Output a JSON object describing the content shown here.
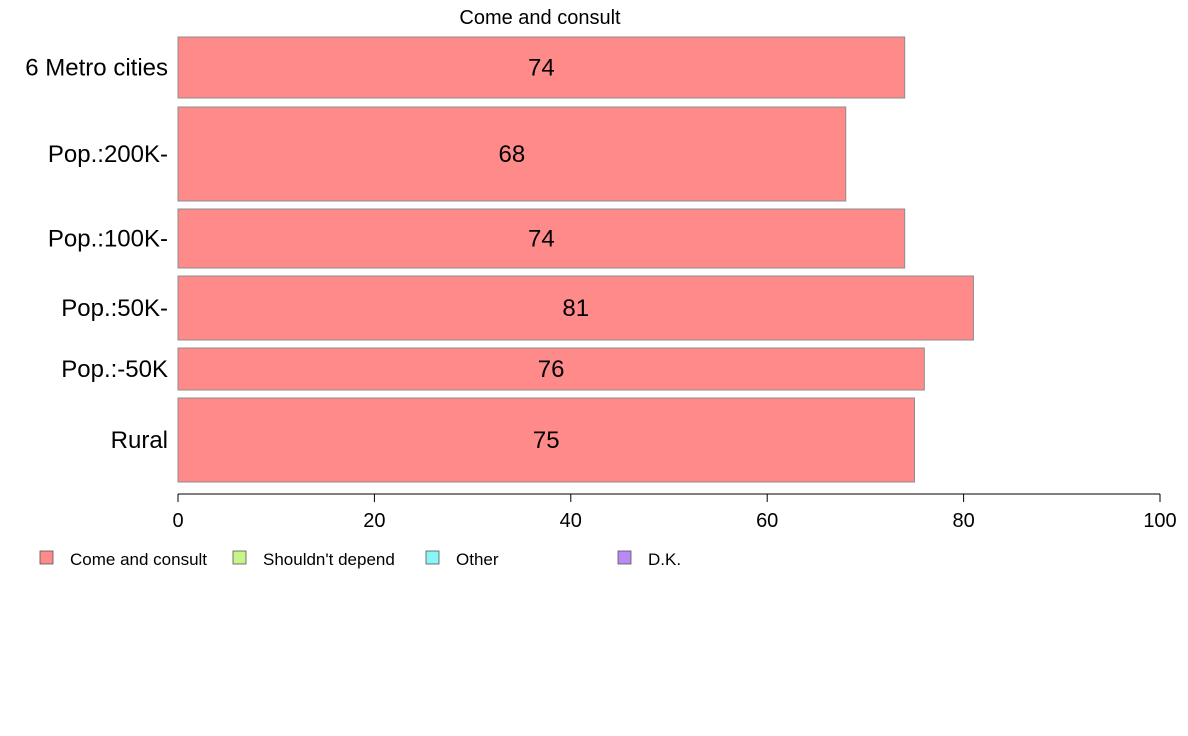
{
  "chart_data": {
    "type": "bar",
    "orientation": "horizontal",
    "title": "Come and consult",
    "xlabel": "",
    "ylabel": "",
    "xlim": [
      0,
      100
    ],
    "xticks": [
      0,
      20,
      40,
      60,
      80,
      100
    ],
    "grid": false,
    "legend_position": "bottom",
    "categories": [
      "6 Metro cities",
      "Pop.:200K-",
      "Pop.:100K-",
      "Pop.:50K-",
      "Pop.:-50K",
      "Rural"
    ],
    "series": [
      {
        "name": "Come and consult",
        "values": [
          74,
          68,
          74,
          81,
          76,
          75
        ],
        "color": "#ff8a8a"
      }
    ],
    "legend": [
      {
        "label": "Come and consult",
        "color": "#ff8a8a"
      },
      {
        "label": "Shouldn't depend",
        "color": "#c8f58a"
      },
      {
        "label": "Other",
        "color": "#8af5f5"
      },
      {
        "label": "D.K.",
        "color": "#b98af5"
      }
    ]
  }
}
